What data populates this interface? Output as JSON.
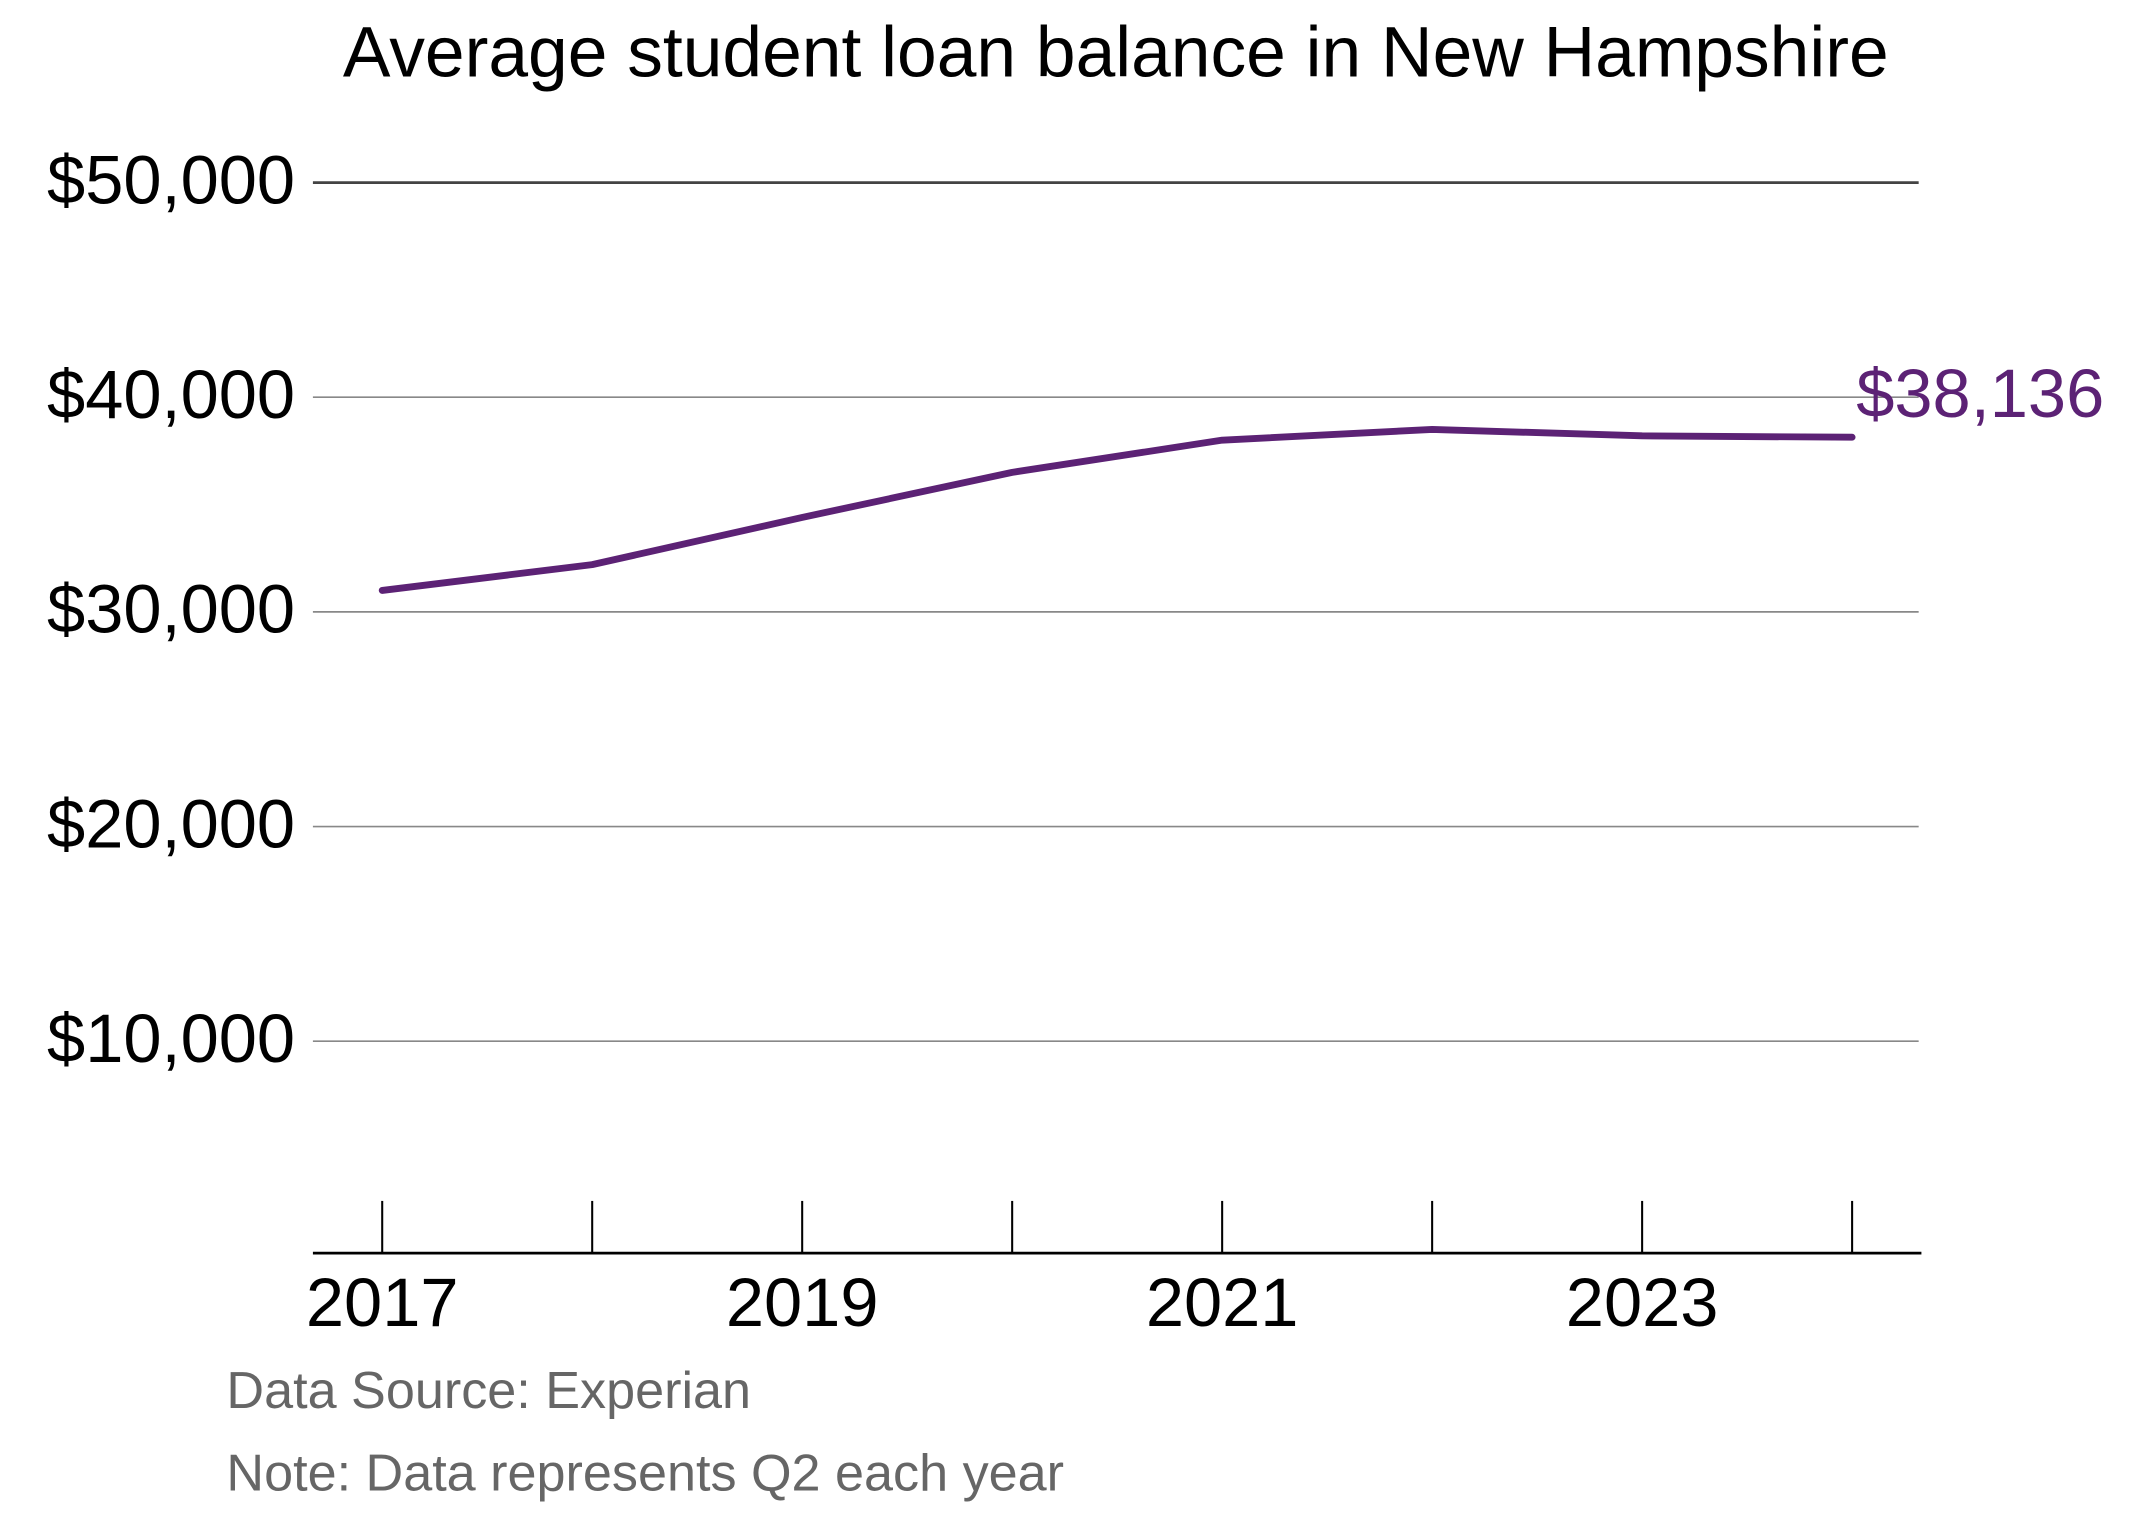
{
  "chart_data": {
    "type": "line",
    "title": "Average student loan balance in New Hampshire",
    "x": [
      2017,
      2018,
      2019,
      2020,
      2021,
      2022,
      2023,
      2024
    ],
    "series": [
      {
        "name": "Average student loan balance",
        "color": "#5c2275",
        "values": [
          31000,
          32200,
          34400,
          36500,
          38000,
          38500,
          38200,
          38136
        ],
        "value_labels": [
          null,
          null,
          null,
          null,
          null,
          null,
          null,
          "$38,136"
        ]
      }
    ],
    "xlim": [
      2016.67,
      2024.33
    ],
    "xticks": [
      2017,
      2019,
      2021,
      2023
    ],
    "ylim": [
      0,
      50000
    ],
    "yticks": [
      {
        "value": 10000,
        "label": "$10,000"
      },
      {
        "value": 20000,
        "label": "$20,000"
      },
      {
        "value": 30000,
        "label": "$30,000"
      },
      {
        "value": 40000,
        "label": "$40,000"
      },
      {
        "value": 50000,
        "label": "$50,000"
      }
    ],
    "grid": true,
    "source": "Data Source: Experian",
    "note": "Note: Data represents Q2 each year"
  }
}
